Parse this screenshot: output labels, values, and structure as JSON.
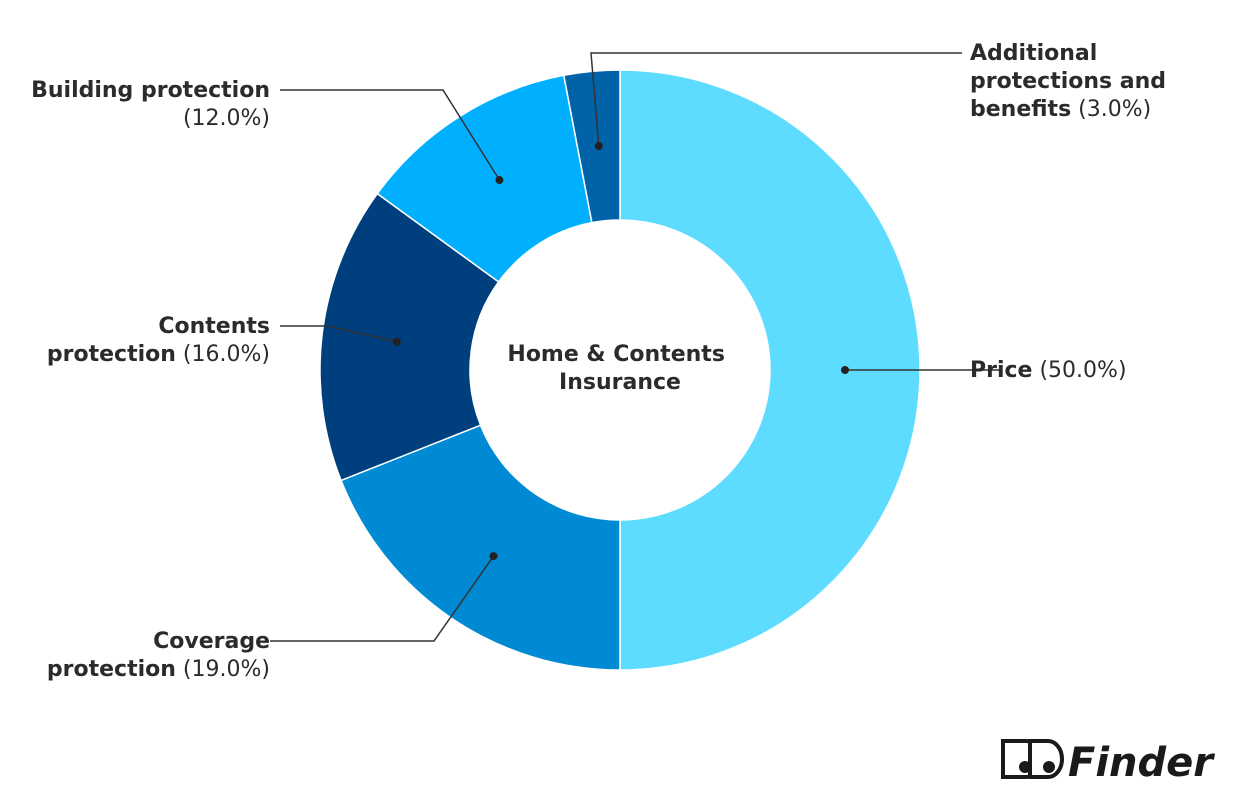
{
  "chart_data": {
    "type": "pie",
    "variant": "donut",
    "center_label": [
      "Home & Contents",
      "Insurance"
    ],
    "slices": [
      {
        "name": "Price",
        "label_bold": "Price",
        "label_lines": [
          "Price"
        ],
        "value": 50.0,
        "value_text": "(50.0%)",
        "color": "#5EDCFF"
      },
      {
        "name": "Coverage protection",
        "label_bold": "Coverage protection",
        "label_lines": [
          "Coverage",
          "protection"
        ],
        "value": 19.0,
        "value_text": "(19.0%)",
        "color": "#008AD3"
      },
      {
        "name": "Contents protection",
        "label_bold": "Contents protection",
        "label_lines": [
          "Contents",
          "protection"
        ],
        "value": 16.0,
        "value_text": "(16.0%)",
        "color": "#003F7E"
      },
      {
        "name": "Building protection",
        "label_bold": "Building protection",
        "label_lines": [
          "Building protection"
        ],
        "value": 12.0,
        "value_text": "(12.0%)",
        "color": "#00B0FF"
      },
      {
        "name": "Additional protections and benefits",
        "label_bold": "Additional protections and benefits",
        "label_lines": [
          "Additional",
          "protections and",
          "benefits"
        ],
        "value": 3.0,
        "value_text": "(3.0%)",
        "color": "#0063A8"
      }
    ]
  },
  "brand": {
    "name": "Finder",
    "logo_icon": "eyes-logo-icon"
  }
}
